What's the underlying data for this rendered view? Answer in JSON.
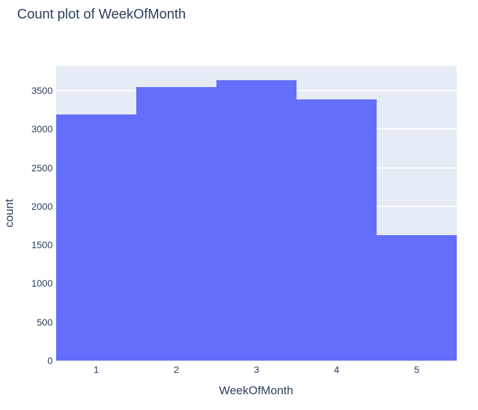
{
  "chart_data": {
    "type": "bar",
    "style": "histogram-countplot",
    "title": "Count plot of WeekOfMonth",
    "xlabel": "WeekOfMonth",
    "ylabel": "count",
    "categories": [
      "1",
      "2",
      "3",
      "4",
      "5"
    ],
    "values": [
      3185,
      3549,
      3638,
      3389,
      1630
    ],
    "ylim": [
      0,
      3820
    ],
    "yticks": [
      0,
      500,
      1000,
      1500,
      2000,
      2500,
      3000,
      3500
    ],
    "grid": true,
    "legend": false,
    "colors": {
      "bar": "#636efa",
      "plot_background": "#e5ecf6",
      "gridline": "#ffffff",
      "text": "#2a3f5f",
      "page_background": "#ffffff"
    }
  }
}
